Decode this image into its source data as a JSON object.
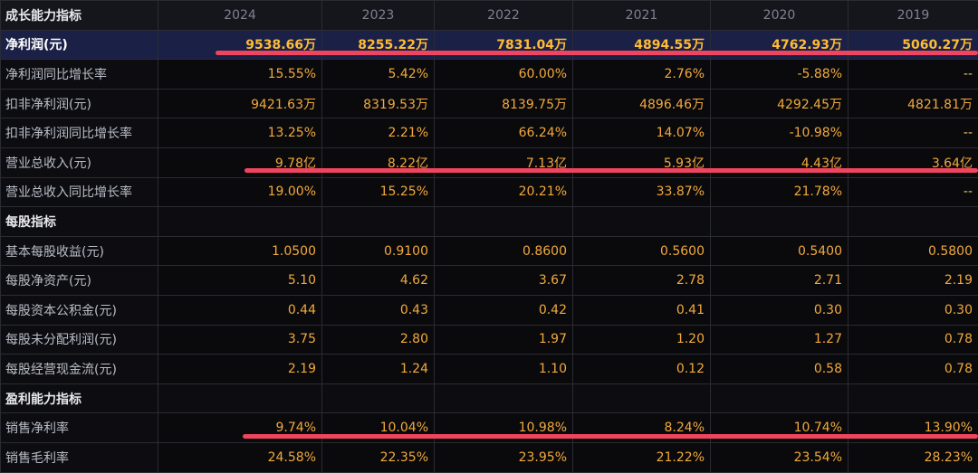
{
  "table": {
    "header": {
      "label": "成长能力指标",
      "years": [
        "2024",
        "2023",
        "2022",
        "2021",
        "2020",
        "2019"
      ]
    },
    "rows": [
      {
        "type": "data",
        "highlight": true,
        "label": "净利润(元)",
        "values": [
          "9538.66万",
          "8255.22万",
          "7831.04万",
          "4894.55万",
          "4762.93万",
          "5060.27万"
        ]
      },
      {
        "type": "data",
        "label": "净利润同比增长率",
        "values": [
          "15.55%",
          "5.42%",
          "60.00%",
          "2.76%",
          "-5.88%",
          "--"
        ]
      },
      {
        "type": "data",
        "label": "扣非净利润(元)",
        "values": [
          "9421.63万",
          "8319.53万",
          "8139.75万",
          "4896.46万",
          "4292.45万",
          "4821.81万"
        ]
      },
      {
        "type": "data",
        "label": "扣非净利润同比增长率",
        "values": [
          "13.25%",
          "2.21%",
          "66.24%",
          "14.07%",
          "-10.98%",
          "--"
        ]
      },
      {
        "type": "data",
        "label": "营业总收入(元)",
        "values": [
          "9.78亿",
          "8.22亿",
          "7.13亿",
          "5.93亿",
          "4.43亿",
          "3.64亿"
        ]
      },
      {
        "type": "data",
        "label": "营业总收入同比增长率",
        "values": [
          "19.00%",
          "15.25%",
          "20.21%",
          "33.87%",
          "21.78%",
          "--"
        ]
      },
      {
        "type": "section",
        "label": "每股指标"
      },
      {
        "type": "data",
        "label": "基本每股收益(元)",
        "values": [
          "1.0500",
          "0.9100",
          "0.8600",
          "0.5600",
          "0.5400",
          "0.5800"
        ]
      },
      {
        "type": "data",
        "label": "每股净资产(元)",
        "values": [
          "5.10",
          "4.62",
          "3.67",
          "2.78",
          "2.71",
          "2.19"
        ]
      },
      {
        "type": "data",
        "label": "每股资本公积金(元)",
        "values": [
          "0.44",
          "0.43",
          "0.42",
          "0.41",
          "0.30",
          "0.30"
        ]
      },
      {
        "type": "data",
        "label": "每股未分配利润(元)",
        "values": [
          "3.75",
          "2.80",
          "1.97",
          "1.20",
          "1.27",
          "0.78"
        ]
      },
      {
        "type": "data",
        "label": "每股经营现金流(元)",
        "values": [
          "2.19",
          "1.24",
          "1.10",
          "0.12",
          "0.58",
          "0.78"
        ]
      },
      {
        "type": "section",
        "label": "盈利能力指标"
      },
      {
        "type": "data",
        "label": "销售净利率",
        "values": [
          "9.74%",
          "10.04%",
          "10.98%",
          "8.24%",
          "10.74%",
          "13.90%"
        ]
      },
      {
        "type": "data",
        "label": "销售毛利率",
        "values": [
          "24.58%",
          "22.35%",
          "23.95%",
          "21.22%",
          "23.54%",
          "28.23%"
        ]
      }
    ]
  },
  "annotations": {
    "underline_color": "#f0455f"
  }
}
